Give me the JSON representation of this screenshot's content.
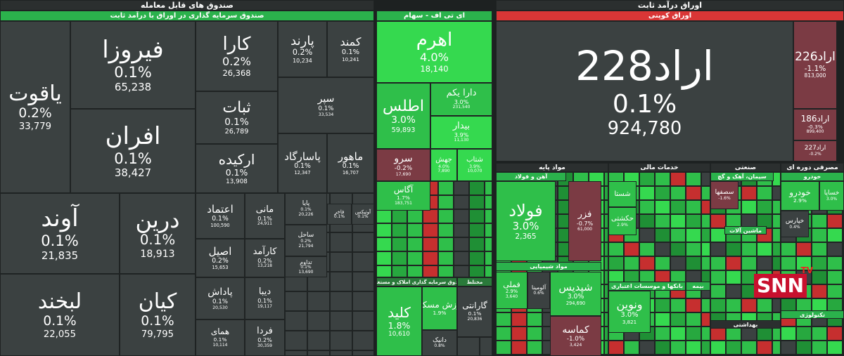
{
  "headers": [
    {
      "text": "صندوق های قابل معامله"
    },
    {
      "text": "صندوق سرمایه گذاری در اوراق با درآمد ثابت"
    },
    {
      "text": "ای تی اف - سهام"
    },
    {
      "text": "اوراق درآمد ثابت"
    },
    {
      "text": "اوراق کوپنی"
    },
    {
      "text": "صندوق سرمایه گذاری املاک و مستغلات"
    },
    {
      "text": "مختلط"
    },
    {
      "text": "مواد پایه"
    },
    {
      "text": "خدمات مالی"
    },
    {
      "text": "صنعتی"
    },
    {
      "text": "مصرفی دوره ای"
    },
    {
      "text": "آهن و فولاد"
    },
    {
      "text": "مواد شیمیایی"
    },
    {
      "text": "بانکها و موسسات اعتباری"
    },
    {
      "text": "بیمه"
    },
    {
      "text": "سیمان، آهک و گچ"
    },
    {
      "text": "ماشین آلات"
    },
    {
      "text": "خودرو"
    },
    {
      "text": "بهداشتی"
    },
    {
      "text": "تکنولوژی"
    }
  ],
  "tiles": [
    {
      "name": "یاقوت",
      "change": "0.2%",
      "value": "33,779"
    },
    {
      "name": "فیروزا",
      "change": "0.1%",
      "value": "65,238"
    },
    {
      "name": "افران",
      "change": "0.1%",
      "value": "38,427"
    },
    {
      "name": "کارا",
      "change": "0.2%",
      "value": "26,368"
    },
    {
      "name": "ثبات",
      "change": "0.1%",
      "value": "26,789"
    },
    {
      "name": "ارکیده",
      "change": "0.1%",
      "value": "13,908"
    },
    {
      "name": "پارند",
      "change": "0.2%",
      "value": "10,234"
    },
    {
      "name": "کمند",
      "change": "0.1%",
      "value": "10,241"
    },
    {
      "name": "سپر",
      "change": "0.1%",
      "value": "33,534"
    },
    {
      "name": "پاسارگاد",
      "change": "0.1%",
      "value": "12,347"
    },
    {
      "name": "ماهور",
      "change": "0.1%",
      "value": "16,707"
    },
    {
      "name": "آوند",
      "change": "0.1%",
      "value": "21,835"
    },
    {
      "name": "لبخند",
      "change": "0.1%",
      "value": "22,055"
    },
    {
      "name": "درین",
      "change": "0.1%",
      "value": "18,913"
    },
    {
      "name": "کیان",
      "change": "0.1%",
      "value": "79,795"
    },
    {
      "name": "اعتماد",
      "change": "0.1%",
      "value": "100,590"
    },
    {
      "name": "اصیل",
      "change": "0.2%",
      "value": "15,653"
    },
    {
      "name": "پاداش",
      "change": "0.1%",
      "value": "20,530"
    },
    {
      "name": "همای",
      "change": "0.1%",
      "value": "10,114"
    },
    {
      "name": "مانی",
      "change": "0.1%",
      "value": "24,911"
    },
    {
      "name": "کارآمد",
      "change": "0.2%",
      "value": "13,218"
    },
    {
      "name": "دیبا",
      "change": "0.1%",
      "value": "19,117"
    },
    {
      "name": "فردا",
      "change": "0.2%",
      "value": "30,359"
    },
    {
      "name": "پایا",
      "change": "0.1%",
      "value": "20,226"
    },
    {
      "name": "ساحل",
      "change": "0.2%",
      "value": "21,794"
    },
    {
      "name": "فاخر",
      "change": "0.1%"
    },
    {
      "name": "آوتیکس",
      "change": "0.1%"
    },
    {
      "name": "تداوم",
      "change": "0.1%",
      "value": "13,690"
    },
    {
      "name": "اهرم",
      "change": "4.0%",
      "value": "18,140"
    },
    {
      "name": "اطلس",
      "change": "3.0%",
      "value": "59,893"
    },
    {
      "name": "دارا یکم",
      "change": "3.0%",
      "value": "231,540"
    },
    {
      "name": "بیدار",
      "change": "3.9%",
      "value": "11,130"
    },
    {
      "name": "سرو",
      "change": "-0.2%",
      "value": "17,690"
    },
    {
      "name": "جهش",
      "change": "4.0%",
      "value": "7,890"
    },
    {
      "name": "شتاب",
      "change": "3.9%",
      "value": "10,070"
    },
    {
      "name": "آگاس",
      "change": "1.7%",
      "value": "183,751"
    },
    {
      "name": "کلید",
      "change": "1.8%",
      "value": "10,610"
    },
    {
      "name": "ارزش مسکن",
      "change": "1.9%"
    },
    {
      "name": "دانیک",
      "change": "0.8%"
    },
    {
      "name": "گارانتی",
      "change": "0.1%",
      "value": "20,836"
    },
    {
      "name": "اراد228",
      "change": "0.1%",
      "value": "924,780"
    },
    {
      "name": "اراد226",
      "change": "-1.1%",
      "value": "813,000"
    },
    {
      "name": "اراد186",
      "change": "-0.3%",
      "value": "899,400"
    },
    {
      "name": "اراد227",
      "change": "-0.2%"
    },
    {
      "name": "فولاد",
      "change": "3.0%",
      "value": "2,365"
    },
    {
      "name": "فزر",
      "change": "-0.7%",
      "value": "61,000"
    },
    {
      "name": "فملی",
      "change": "2.9%",
      "value": "3,640"
    },
    {
      "name": "آلومینا",
      "change": "0.6%"
    },
    {
      "name": "شپدیس",
      "change": "3.0%",
      "value": "294,690"
    },
    {
      "name": "کماسه",
      "change": "-1.0%",
      "value": "3,424"
    },
    {
      "name": "شستا"
    },
    {
      "name": "حکشتی",
      "change": "2.9%"
    },
    {
      "name": "ونوین",
      "change": "3.0%",
      "value": "3,821"
    },
    {
      "name": "سصفها",
      "change": "-1.6%"
    },
    {
      "name": "خودرو",
      "change": "2.9%"
    },
    {
      "name": "خساپا",
      "change": "3.0%"
    },
    {
      "name": "خپارس",
      "change": "0.4%"
    }
  ],
  "watermark": {
    "brand": "SNN",
    "tv": "TV"
  }
}
